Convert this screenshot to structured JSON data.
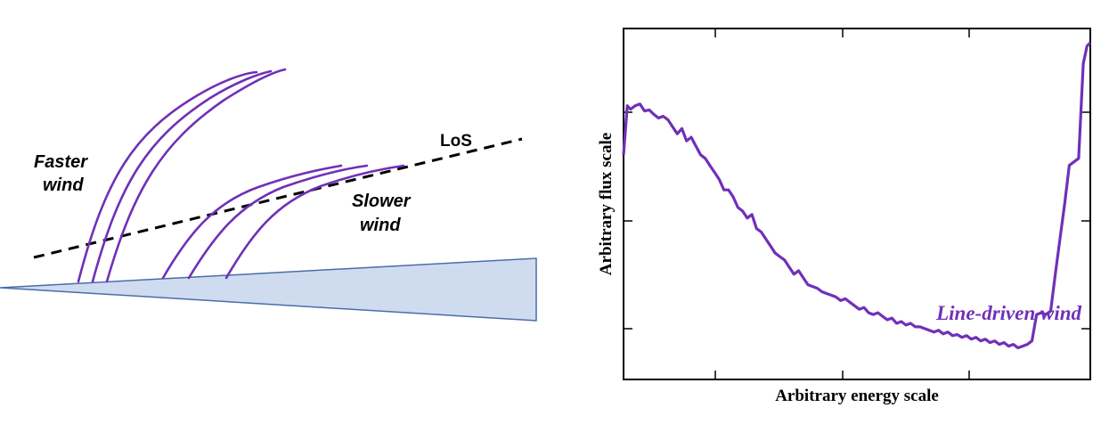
{
  "colors": {
    "wind": "#7030b8",
    "disk_fill": "#cfdcf0",
    "disk_stroke": "#4a6da8",
    "los": "#000000"
  },
  "diagram": {
    "faster_wind_label_line1": "Faster",
    "faster_wind_label_line2": "wind",
    "slower_wind_label_line1": "Slower",
    "slower_wind_label_line2": "wind",
    "los_label": "LoS"
  },
  "chart_data": {
    "type": "line",
    "title": "",
    "xlabel": "Arbitrary energy scale",
    "ylabel": "Arbitrary flux scale",
    "xlim": [
      0,
      1
    ],
    "ylim": [
      0,
      1
    ],
    "grid": false,
    "annotations": [
      {
        "text": "Line-driven wind",
        "x": 0.67,
        "y": 0.17
      }
    ],
    "series": [
      {
        "x": [
          0.0,
          0.008,
          0.015,
          0.025,
          0.035,
          0.045,
          0.055,
          0.065,
          0.075,
          0.085,
          0.095,
          0.105,
          0.115,
          0.125,
          0.135,
          0.145,
          0.155,
          0.165,
          0.175,
          0.185,
          0.195,
          0.205,
          0.215,
          0.225,
          0.235,
          0.245,
          0.255,
          0.265,
          0.275,
          0.285,
          0.295,
          0.305,
          0.315,
          0.325,
          0.335,
          0.345,
          0.355,
          0.365,
          0.375,
          0.385,
          0.395,
          0.405,
          0.415,
          0.425,
          0.435,
          0.445,
          0.455,
          0.465,
          0.475,
          0.485,
          0.495,
          0.505,
          0.515,
          0.525,
          0.535,
          0.545,
          0.555,
          0.565,
          0.575,
          0.585,
          0.595,
          0.605,
          0.615,
          0.625,
          0.635,
          0.645,
          0.655,
          0.665,
          0.675,
          0.685,
          0.695,
          0.705,
          0.715,
          0.725,
          0.735,
          0.745,
          0.755,
          0.765,
          0.775,
          0.785,
          0.795,
          0.805,
          0.815,
          0.825,
          0.835,
          0.845,
          0.855,
          0.865,
          0.875,
          0.885,
          0.895,
          0.905,
          0.915,
          0.925,
          0.935,
          0.945,
          0.955,
          0.965,
          0.975,
          0.985,
          0.993,
          1.0
        ],
        "y": [
          0.64,
          0.78,
          0.77,
          0.78,
          0.785,
          0.765,
          0.768,
          0.755,
          0.745,
          0.75,
          0.74,
          0.72,
          0.7,
          0.715,
          0.68,
          0.69,
          0.665,
          0.64,
          0.63,
          0.61,
          0.59,
          0.57,
          0.54,
          0.54,
          0.52,
          0.49,
          0.48,
          0.46,
          0.47,
          0.43,
          0.42,
          0.4,
          0.38,
          0.36,
          0.35,
          0.34,
          0.32,
          0.3,
          0.31,
          0.29,
          0.27,
          0.265,
          0.26,
          0.25,
          0.245,
          0.24,
          0.235,
          0.225,
          0.23,
          0.22,
          0.21,
          0.2,
          0.205,
          0.19,
          0.185,
          0.19,
          0.18,
          0.17,
          0.175,
          0.16,
          0.165,
          0.155,
          0.16,
          0.15,
          0.15,
          0.145,
          0.14,
          0.135,
          0.14,
          0.13,
          0.135,
          0.125,
          0.128,
          0.12,
          0.125,
          0.115,
          0.12,
          0.11,
          0.115,
          0.105,
          0.11,
          0.1,
          0.105,
          0.095,
          0.1,
          0.09,
          0.095,
          0.1,
          0.11,
          0.185,
          0.19,
          0.185,
          0.195,
          0.3,
          0.4,
          0.5,
          0.61,
          0.62,
          0.63,
          0.9,
          0.95,
          0.96
        ]
      }
    ]
  }
}
